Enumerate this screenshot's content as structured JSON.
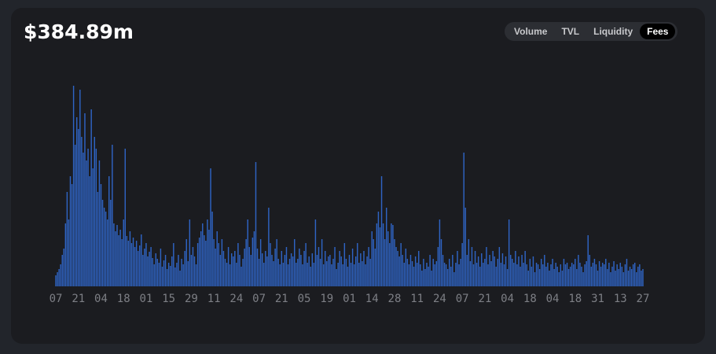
{
  "header": {
    "value": "$384.89m",
    "tabs": [
      "Volume",
      "TVL",
      "Liquidity",
      "Fees"
    ],
    "active_tab": 3
  },
  "chart_data": {
    "type": "bar",
    "color": "#2f64c4",
    "ylim": [
      0,
      260
    ],
    "categories": [
      "07",
      null,
      null,
      null,
      null,
      null,
      null,
      null,
      null,
      null,
      null,
      null,
      null,
      null,
      "21",
      null,
      null,
      null,
      null,
      null,
      null,
      null,
      null,
      null,
      null,
      null,
      null,
      null,
      "04",
      null,
      null,
      null,
      null,
      null,
      null,
      null,
      null,
      null,
      null,
      null,
      null,
      null,
      "18",
      null,
      null,
      null,
      null,
      null,
      null,
      null,
      null,
      null,
      null,
      null,
      null,
      null,
      "01",
      null,
      null,
      null,
      null,
      null,
      null,
      null,
      null,
      null,
      null,
      null,
      null,
      null,
      "15",
      null,
      null,
      null,
      null,
      null,
      null,
      null,
      null,
      null,
      null,
      null,
      null,
      null,
      "29",
      null,
      null,
      null,
      null,
      null,
      null,
      null,
      null,
      null,
      null,
      null,
      null,
      null,
      "11",
      null,
      null,
      null,
      null,
      null,
      null,
      null,
      null,
      null,
      null,
      null,
      null,
      null,
      "24",
      null,
      null,
      null,
      null,
      null,
      null,
      null,
      null,
      null,
      null,
      null,
      null,
      null,
      "07",
      null,
      null,
      null,
      null,
      null,
      null,
      null,
      null,
      null,
      null,
      null,
      null,
      null,
      "21",
      null,
      null,
      null,
      null,
      null,
      null,
      null,
      null,
      null,
      null,
      null,
      null,
      null,
      "05",
      null,
      null,
      null,
      null,
      null,
      null,
      null,
      null,
      null,
      null,
      null,
      null,
      null,
      "19",
      null,
      null,
      null,
      null,
      null,
      null,
      null,
      null,
      null,
      null,
      null,
      null,
      null,
      "01",
      null,
      null,
      null,
      null,
      null,
      null,
      null,
      null,
      null,
      null,
      null,
      null,
      null,
      "14",
      null,
      null,
      null,
      null,
      null,
      null,
      null,
      null,
      null,
      null,
      null,
      null,
      null,
      "28",
      null,
      null,
      null,
      null,
      null,
      null,
      null,
      null,
      null,
      null,
      null,
      null,
      null,
      "11",
      null,
      null,
      null,
      null,
      null,
      null,
      null,
      null,
      null,
      null,
      null,
      null,
      null,
      "24",
      null,
      null,
      null,
      null,
      null,
      null,
      null,
      null,
      null,
      null,
      null,
      null,
      null,
      "07",
      null,
      null,
      null,
      null,
      null,
      null,
      null,
      null,
      null,
      null,
      null,
      null,
      null,
      "21",
      null,
      null,
      null,
      null,
      null,
      null,
      null,
      null,
      null,
      null,
      null,
      null,
      null,
      "04",
      null,
      null,
      null,
      null,
      null,
      null,
      null,
      null,
      null,
      null,
      null,
      null,
      null,
      "18",
      null,
      null,
      null,
      null,
      null,
      null,
      null,
      null,
      null,
      null,
      null,
      null,
      null,
      "04",
      null,
      null,
      null,
      null,
      null,
      null,
      null,
      null,
      null,
      null,
      null,
      null,
      null,
      "18",
      null,
      null,
      null,
      null,
      null,
      null,
      null,
      null,
      null,
      null,
      null,
      null,
      null,
      "31",
      null,
      null,
      null,
      null,
      null,
      null,
      null,
      null,
      null,
      null,
      null,
      null,
      null,
      "13",
      null,
      null,
      null,
      null,
      null,
      null,
      null,
      null,
      null,
      null,
      null,
      null,
      null,
      "27"
    ],
    "values": [
      14,
      18,
      22,
      28,
      40,
      48,
      80,
      120,
      85,
      140,
      130,
      255,
      180,
      215,
      200,
      250,
      190,
      170,
      220,
      160,
      175,
      140,
      225,
      150,
      190,
      175,
      120,
      160,
      130,
      110,
      100,
      95,
      85,
      140,
      110,
      180,
      80,
      70,
      78,
      65,
      72,
      60,
      85,
      175,
      64,
      58,
      70,
      55,
      62,
      50,
      58,
      45,
      52,
      66,
      40,
      48,
      55,
      38,
      44,
      50,
      36,
      28,
      42,
      35,
      30,
      48,
      25,
      33,
      40,
      22,
      30,
      26,
      38,
      55,
      24,
      30,
      40,
      20,
      35,
      28,
      45,
      60,
      32,
      85,
      40,
      50,
      38,
      28,
      55,
      62,
      70,
      80,
      65,
      58,
      85,
      72,
      150,
      95,
      60,
      48,
      70,
      55,
      40,
      60,
      45,
      35,
      30,
      50,
      28,
      42,
      38,
      45,
      30,
      55,
      40,
      25,
      35,
      48,
      60,
      85,
      50,
      40,
      62,
      70,
      158,
      48,
      35,
      60,
      42,
      30,
      45,
      38,
      100,
      55,
      40,
      32,
      48,
      60,
      35,
      28,
      45,
      30,
      40,
      50,
      28,
      35,
      42,
      38,
      60,
      30,
      35,
      48,
      40,
      28,
      45,
      55,
      30,
      38,
      25,
      42,
      30,
      85,
      40,
      50,
      35,
      60,
      28,
      45,
      32,
      38,
      40,
      28,
      35,
      50,
      22,
      30,
      45,
      38,
      28,
      55,
      35,
      25,
      40,
      30,
      48,
      28,
      38,
      55,
      30,
      42,
      32,
      45,
      28,
      38,
      50,
      35,
      70,
      60,
      48,
      80,
      95,
      75,
      140,
      80,
      60,
      100,
      70,
      55,
      80,
      78,
      60,
      50,
      45,
      38,
      55,
      40,
      30,
      48,
      35,
      28,
      40,
      32,
      25,
      38,
      30,
      45,
      28,
      20,
      35,
      22,
      30,
      25,
      40,
      20,
      35,
      28,
      32,
      50,
      85,
      60,
      40,
      30,
      28,
      22,
      35,
      25,
      40,
      18,
      30,
      45,
      28,
      35,
      55,
      170,
      100,
      40,
      60,
      32,
      50,
      28,
      45,
      30,
      38,
      25,
      42,
      30,
      35,
      50,
      28,
      40,
      32,
      45,
      38,
      25,
      35,
      50,
      30,
      42,
      28,
      38,
      22,
      85,
      40,
      35,
      30,
      45,
      28,
      38,
      25,
      40,
      30,
      45,
      28,
      20,
      35,
      25,
      38,
      18,
      30,
      28,
      22,
      35,
      28,
      40,
      25,
      30,
      20,
      28,
      35,
      22,
      30,
      25,
      18,
      28,
      20,
      35,
      28,
      30,
      22,
      25,
      30,
      28,
      35,
      22,
      40,
      30,
      25,
      18,
      28,
      32,
      65,
      40,
      25,
      30,
      35,
      28,
      20,
      32,
      25,
      30,
      28,
      35,
      22,
      30,
      18,
      25,
      32,
      20,
      28,
      22,
      30,
      25,
      18,
      28,
      35,
      20,
      25,
      22,
      28,
      30,
      18,
      25,
      28,
      20,
      22
    ]
  }
}
